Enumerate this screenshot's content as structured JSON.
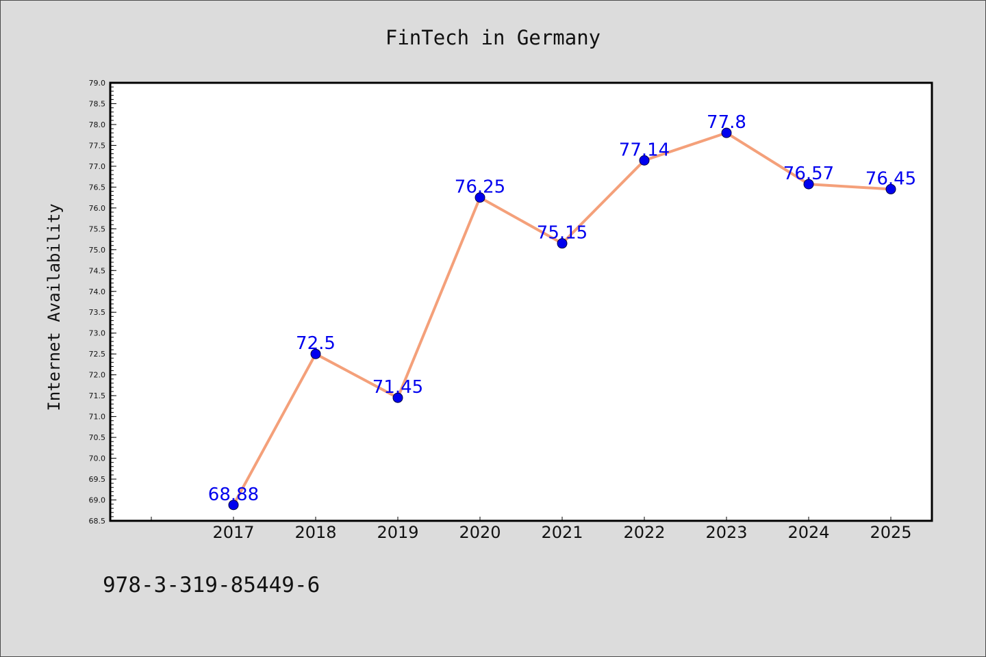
{
  "chart_data": {
    "type": "line",
    "title": "FinTech in Germany",
    "xlabel": "",
    "ylabel": "Internet Availability",
    "categories": [
      "2017",
      "2018",
      "2019",
      "2020",
      "2021",
      "2022",
      "2023",
      "2024",
      "2025"
    ],
    "series": [
      {
        "values": [
          68.88,
          72.5,
          71.45,
          76.25,
          75.15,
          77.14,
          77.8,
          76.57,
          76.45
        ],
        "data_labels": [
          "68.88",
          "72.5",
          "71.45",
          "76.25",
          "75.15",
          "77.14",
          "77.8",
          "76.57",
          "76.45"
        ],
        "line_color": "#f4a07a",
        "marker_color": "#0000ee",
        "label_color": "#0000ee"
      }
    ],
    "ylim": [
      68.5,
      79.0
    ],
    "yticks": [
      "68.5",
      "69.0",
      "69.5",
      "70.0",
      "70.5",
      "71.0",
      "71.5",
      "72.0",
      "72.5",
      "73.0",
      "73.5",
      "74.0",
      "74.5",
      "75.0",
      "75.5",
      "76.0",
      "76.5",
      "77.0",
      "77.5",
      "78.0",
      "78.5",
      "79.0"
    ],
    "grid": false,
    "legend": "none"
  },
  "footer": {
    "isbn": "978-3-319-85449-6"
  },
  "colors": {
    "background": "#dcdcdc",
    "plot_area": "#ffffff",
    "axis": "#000000"
  }
}
